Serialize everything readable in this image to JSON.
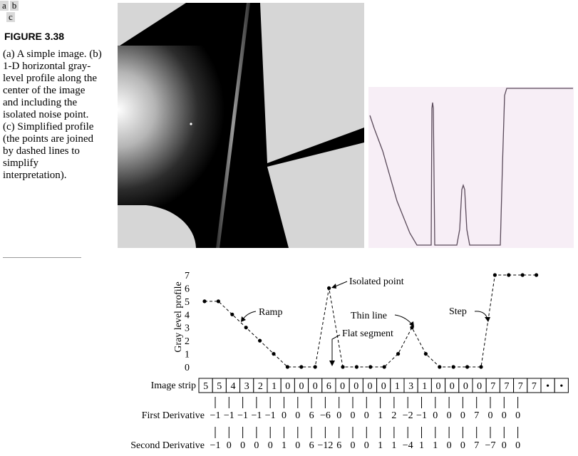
{
  "panel_letters": [
    "a",
    "b",
    "c"
  ],
  "figure": {
    "label": "FIGURE 3.38",
    "caption": "(a) A simple image. (b) 1-D horizontal gray-level profile along the center of the image and including the isolated noise point. (c) Simplified profile (the points are joined by dashed lines to simplify interpretation)."
  },
  "colors": {
    "profile_background": "#f7eef6",
    "profile_line": "#5a4a5a",
    "image_light": "#d6d6d6",
    "image_dark": "#000000"
  },
  "chart_data": {
    "type": "line",
    "ylabel": "Gray level profile",
    "ylim": [
      0,
      7
    ],
    "yticks": [
      0,
      1,
      2,
      3,
      4,
      5,
      6,
      7
    ],
    "values": [
      5,
      5,
      4,
      3,
      2,
      1,
      0,
      0,
      0,
      6,
      0,
      0,
      0,
      0,
      1,
      3,
      1,
      0,
      0,
      0,
      0,
      7,
      7,
      7,
      7
    ],
    "line_style": "dashed",
    "annotations": [
      "Isolated point",
      "Ramp",
      "Thin line",
      "Flat segment",
      "Step"
    ],
    "strip": {
      "label": "Image strip",
      "cells": [
        "5",
        "5",
        "4",
        "3",
        "2",
        "1",
        "0",
        "0",
        "0",
        "6",
        "0",
        "0",
        "0",
        "0",
        "1",
        "3",
        "1",
        "0",
        "0",
        "0",
        "0",
        "7",
        "7",
        "7",
        "7",
        "•",
        "•"
      ]
    },
    "first_derivative": {
      "label": "First Derivative",
      "values": [
        "−1",
        "−1",
        "−1",
        "−1",
        "−1",
        "0",
        "0",
        "6",
        "−6",
        "0",
        "0",
        "0",
        "1",
        "2",
        "−2",
        "−1",
        "0",
        "0",
        "0",
        "7",
        "0",
        "0",
        "0"
      ]
    },
    "second_derivative": {
      "label": "Second Derivative",
      "values": [
        "−1",
        "0",
        "0",
        "0",
        "0",
        "1",
        "0",
        "6",
        "−12",
        "6",
        "0",
        "0",
        "1",
        "1",
        "−4",
        "1",
        "1",
        "0",
        "0",
        "7",
        "−7",
        "0",
        "0"
      ]
    }
  }
}
